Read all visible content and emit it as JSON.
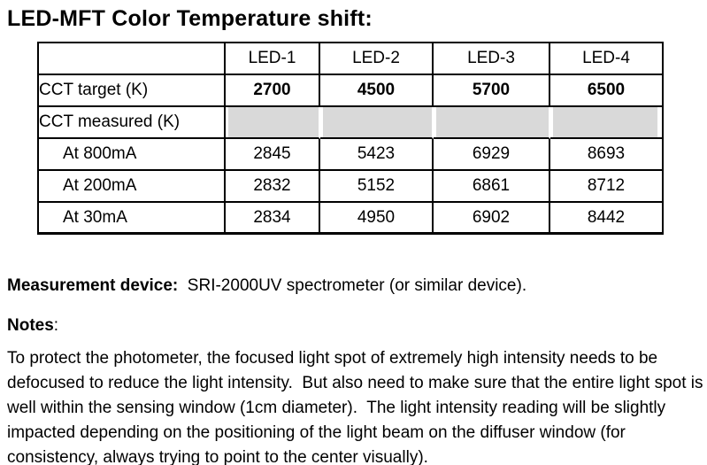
{
  "title": "LED-MFT Color Temperature shift:",
  "table": {
    "columns": [
      "",
      "LED-1",
      "LED-2",
      "LED-3",
      "LED-4"
    ],
    "shaded_color": "#d9d9d9",
    "border_color": "#000000",
    "rows": [
      {
        "label": "CCT target (K)",
        "values": [
          "2700",
          "4500",
          "5700",
          "6500"
        ]
      },
      {
        "label": "CCT measured (K)",
        "values": [
          "",
          "",
          "",
          ""
        ]
      },
      {
        "label": "At 800mA",
        "values": [
          "2845",
          "5423",
          "6929",
          "8693"
        ]
      },
      {
        "label": "At 200mA",
        "values": [
          "2832",
          "5152",
          "6861",
          "8712"
        ]
      },
      {
        "label": "At 30mA",
        "values": [
          "2834",
          "4950",
          "6902",
          "8442"
        ]
      }
    ]
  },
  "measurement": {
    "label": "Measurement device:",
    "value": "  SRI-2000UV spectrometer (or similar device)."
  },
  "notes": {
    "label": "Notes",
    "colon": ":",
    "paragraph": "To protect the photometer, the focused light spot of extremely high intensity needs to be defocused to reduce the light intensity.  But also need to make sure that the entire light spot is well within the sensing window (1cm diameter).  The light intensity reading will be slightly impacted depending on the positioning of the light beam on the diffuser window (for consistency, always trying to point to the center visually)."
  }
}
